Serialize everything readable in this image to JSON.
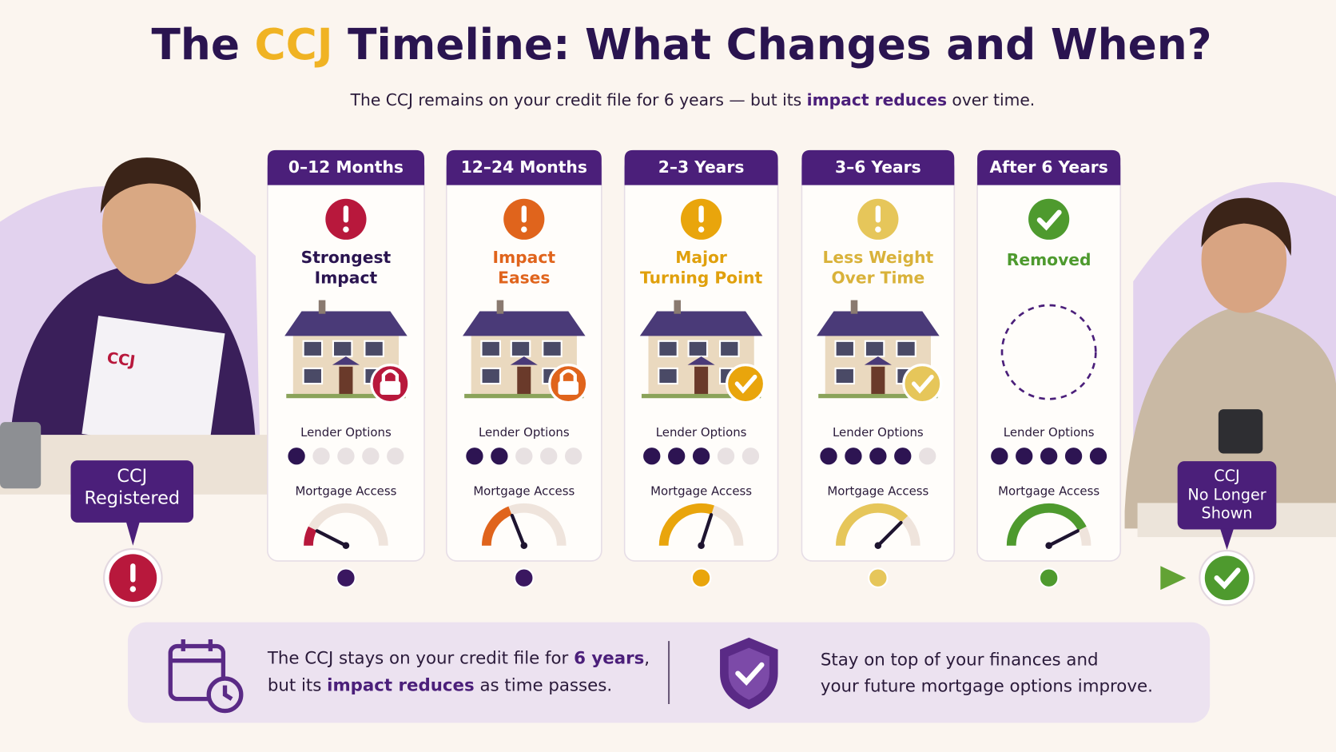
{
  "header": {
    "title": [
      {
        "text": "The ",
        "accent": false
      },
      {
        "text": "CCJ",
        "accent": true
      },
      {
        "text": " Timeline: What Changes and When?",
        "accent": false
      }
    ],
    "subtitle": [
      {
        "text": "The CCJ remains on your credit file for 6 years — but its ",
        "bold": false
      },
      {
        "text": "impact reduces",
        "bold": true
      },
      {
        "text": " over time.",
        "bold": false
      }
    ]
  },
  "start": {
    "label": [
      "CCJ",
      "Registered"
    ]
  },
  "end": {
    "label": [
      "CCJ",
      "No Longer",
      "Shown"
    ]
  },
  "lender_options_label": "Lender Options",
  "mortgage_access_label": "Mortgage Access",
  "lender_option_count": 5,
  "stages": [
    {
      "period": "0–12 Months",
      "status": [
        "Strongest",
        "Impact"
      ],
      "color": "#b8183c",
      "status_color": "#2a1450",
      "icon": "alert",
      "house": true,
      "badge": "lock",
      "lender_options": 1,
      "mortgage_access": 15
    },
    {
      "period": "12–24 Months",
      "status": [
        "Impact",
        "Eases"
      ],
      "color": "#e0641c",
      "status_color": "#e0641c",
      "icon": "alert",
      "house": true,
      "badge": "lock",
      "lender_options": 2,
      "mortgage_access": 38
    },
    {
      "period": "2–3 Years",
      "status": [
        "Major",
        "Turning Point"
      ],
      "color": "#e9a50c",
      "status_color": "#e0a00c",
      "icon": "alert",
      "house": true,
      "badge": "check",
      "lender_options": 3,
      "mortgage_access": 60
    },
    {
      "period": "3–6 Years",
      "status": [
        "Less Weight",
        "Over Time"
      ],
      "color": "#e6c65a",
      "status_color": "#d9b23a",
      "icon": "alert",
      "house": true,
      "badge": "check",
      "lender_options": 4,
      "mortgage_access": 75
    },
    {
      "period": "After 6 Years",
      "status": [
        "Removed"
      ],
      "color": "#4e9a2e",
      "status_color": "#4e9a2e",
      "icon": "check",
      "house": false,
      "lender_options": 5,
      "mortgage_access": 85
    }
  ],
  "footer": {
    "notes": [
      {
        "lines": [
          [
            {
              "text": "The CCJ stays on your credit file for ",
              "bold": false
            },
            {
              "text": "6 years",
              "bold": true
            },
            {
              "text": ",",
              "bold": false
            }
          ],
          [
            {
              "text": "but its ",
              "bold": false
            },
            {
              "text": "impact reduces",
              "bold": true
            },
            {
              "text": " as time passes.",
              "bold": false
            }
          ]
        ]
      },
      {
        "lines": [
          [
            {
              "text": "Stay on top of your finances and",
              "bold": false
            }
          ],
          [
            {
              "text": "your future mortgage options improve.",
              "bold": false
            }
          ]
        ]
      }
    ]
  }
}
